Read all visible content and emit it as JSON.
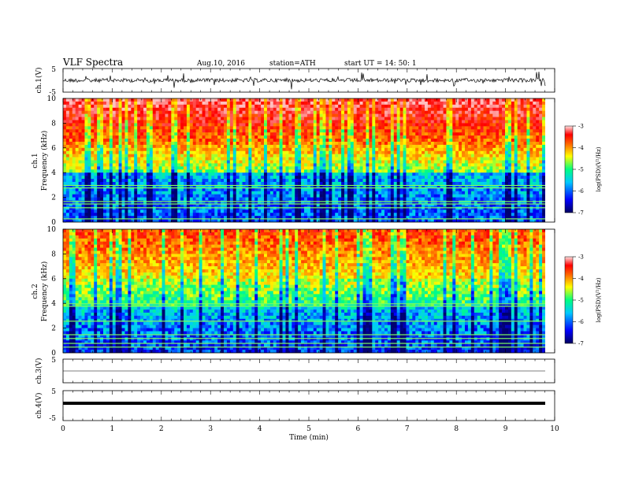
{
  "header": {
    "title": "VLF  Spectra",
    "date": "Aug.10, 2016",
    "station": "station=ATH",
    "start": "start  UT =   14: 50: 1"
  },
  "chart_data": {
    "type": "heatmap",
    "xlabel": "Time  (min)",
    "xlim": [
      0,
      10
    ],
    "x_ticks": [
      "0",
      "1",
      "2",
      "3",
      "4",
      "5",
      "6",
      "7",
      "8",
      "9",
      "10"
    ],
    "panels": [
      {
        "id": "ch1-wave",
        "kind": "waveform",
        "ylabel": "ch.1(V)",
        "ylim": [
          -5,
          5
        ],
        "y_ticks": [
          "5",
          "-5"
        ]
      },
      {
        "id": "ch1-spec",
        "kind": "spectrogram",
        "ylabel": "ch.1\nFrequency (kHz)",
        "ylim": [
          0,
          10
        ],
        "y_ticks": [
          "0",
          "2",
          "4",
          "6",
          "8",
          "10"
        ],
        "colorbar": {
          "label": "log(PSD)(V²/Hz)",
          "range": [
            -7,
            -3
          ],
          "ticks": [
            "-3",
            "-4",
            "-5",
            "-6",
            "-7"
          ]
        }
      },
      {
        "id": "ch2-spec",
        "kind": "spectrogram",
        "ylabel": "ch.2\nFrequency (kHz)",
        "ylim": [
          0,
          10
        ],
        "y_ticks": [
          "0",
          "2",
          "4",
          "6",
          "8",
          "10"
        ],
        "colorbar": {
          "label": "log(PSD)(V²/Hz)",
          "range": [
            -7,
            -3
          ],
          "ticks": [
            "-3",
            "-4",
            "-5",
            "-6",
            "-7"
          ]
        }
      },
      {
        "id": "ch3-wave",
        "kind": "waveform",
        "ylabel": "ch.3(V)",
        "ylim": [
          -5,
          5
        ],
        "y_ticks": [
          "5"
        ]
      },
      {
        "id": "ch4-wave",
        "kind": "waveform",
        "ylabel": "ch.4(V)",
        "ylim": [
          -5,
          5
        ],
        "y_ticks": [
          "5",
          "-5"
        ]
      }
    ],
    "colormap": [
      "#000070",
      "#0000ff",
      "#00c8ff",
      "#00ff80",
      "#ffff00",
      "#ff8000",
      "#ff0000",
      "#ffc0c0"
    ]
  }
}
